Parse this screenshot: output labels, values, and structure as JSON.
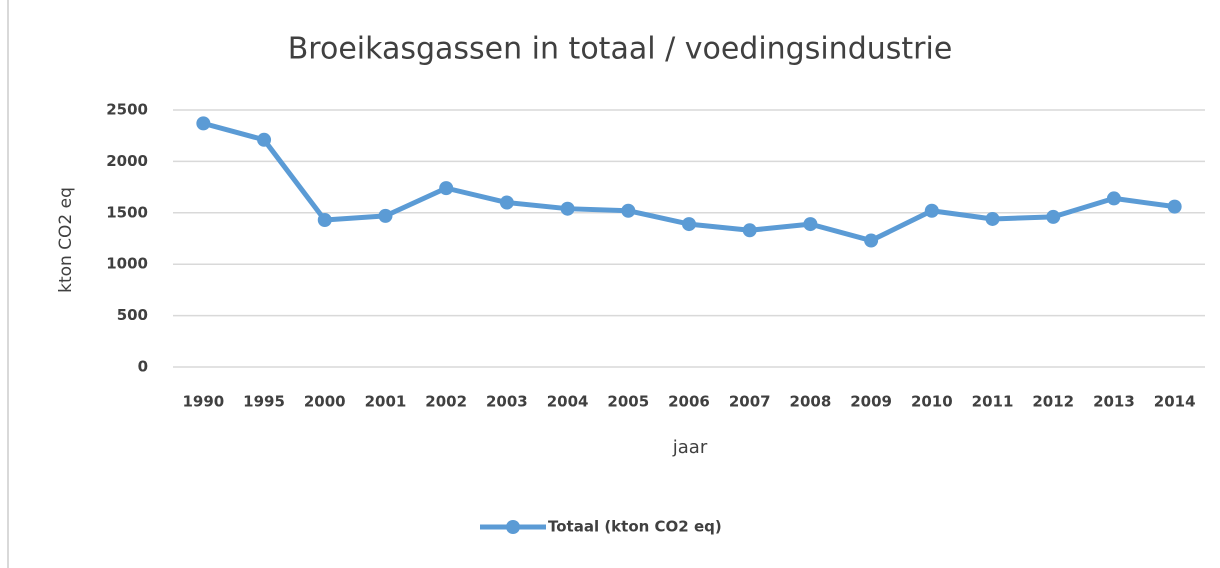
{
  "chart_data": {
    "type": "line",
    "title": "Broeikasgassen in totaal / voedingsindustrie",
    "x_label": "jaar",
    "y_label": "kton CO2 eq",
    "categories": [
      "1990",
      "1995",
      "2000",
      "2001",
      "2002",
      "2003",
      "2004",
      "2005",
      "2006",
      "2007",
      "2008",
      "2009",
      "2010",
      "2011",
      "2012",
      "2013",
      "2014"
    ],
    "series": [
      {
        "name": "Totaal (kton CO2 eq)",
        "color": "#5b9bd5",
        "values": [
          2370,
          2210,
          1430,
          1470,
          1740,
          1600,
          1540,
          1520,
          1390,
          1330,
          1390,
          1230,
          1520,
          1440,
          1460,
          1640,
          1560
        ]
      }
    ],
    "ylim": [
      0,
      2500
    ],
    "yticks": [
      0,
      500,
      1000,
      1500,
      2000,
      2500
    ],
    "grid": true,
    "legend": "bottom"
  }
}
